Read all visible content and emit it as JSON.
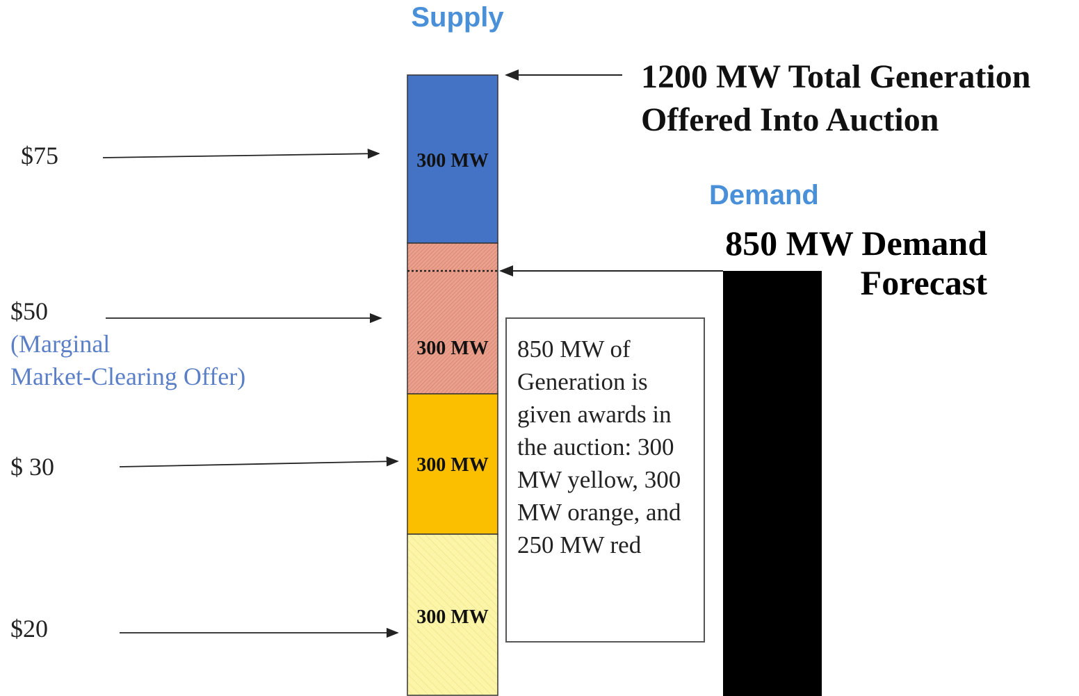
{
  "supply_heading": "Supply",
  "demand_heading": "Demand",
  "total_generation": [
    "1200 MW Total Generation",
    "Offered Into Auction"
  ],
  "demand_forecast": [
    "850 MW Demand",
    "Forecast"
  ],
  "price_labels": {
    "p75": "$75",
    "p50": "$50",
    "marginal_note": [
      "(Marginal",
      "Market-Clearing Offer)"
    ],
    "p30": "$ 30",
    "p20": "$20"
  },
  "segments": [
    "300 MW",
    "300 MW",
    "300 MW",
    "300 MW"
  ],
  "award_box": [
    "850 MW of",
    "Generation is",
    "given awards in",
    "the auction: 300",
    "MW yellow, 300",
    "MW orange, and",
    "250 MW red"
  ]
}
